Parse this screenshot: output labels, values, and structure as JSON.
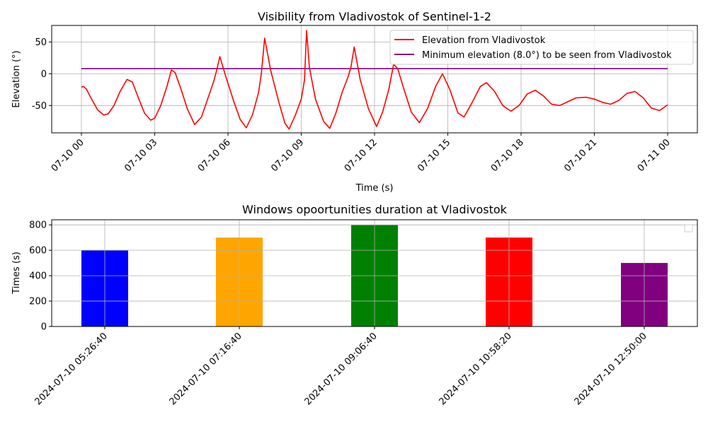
{
  "chart_data": [
    {
      "type": "line",
      "title": "Visibility from Vladivostok of Sentinel-1-2",
      "xlabel": "Time (s)",
      "ylabel": "Elevation (°)",
      "xlim": [
        "2024-07-10 00:00",
        "2024-07-11 00:00"
      ],
      "ylim": [
        -93,
        76
      ],
      "xticks": [
        "07-10 00",
        "07-10 03",
        "07-10 06",
        "07-10 09",
        "07-10 12",
        "07-10 15",
        "07-10 18",
        "07-10 21",
        "07-11 00"
      ],
      "yticks": [
        50,
        0,
        -50
      ],
      "grid": true,
      "legend_position": "top-right",
      "series": [
        {
          "name": "Elevation from Vladivostok",
          "color": "#ff0000",
          "x": [
            "2024-07-10 00:00",
            "2024-07-10 00:05",
            "2024-07-10 00:12",
            "2024-07-10 00:25",
            "2024-07-10 00:40",
            "2024-07-10 00:55",
            "2024-07-10 01:06",
            "2024-07-10 01:20",
            "2024-07-10 01:35",
            "2024-07-10 01:52",
            "2024-07-10 02:05",
            "2024-07-10 02:20",
            "2024-07-10 02:35",
            "2024-07-10 02:50",
            "2024-07-10 03:00",
            "2024-07-10 03:15",
            "2024-07-10 03:30",
            "2024-07-10 03:41",
            "2024-07-10 03:50",
            "2024-07-10 04:05",
            "2024-07-10 04:20",
            "2024-07-10 04:38",
            "2024-07-10 04:55",
            "2024-07-10 05:10",
            "2024-07-10 05:25",
            "2024-07-10 05:32",
            "2024-07-10 05:40",
            "2024-07-10 05:55",
            "2024-07-10 06:15",
            "2024-07-10 06:30",
            "2024-07-10 06:45",
            "2024-07-10 07:00",
            "2024-07-10 07:15",
            "2024-07-10 07:22",
            "2024-07-10 07:30",
            "2024-07-10 07:45",
            "2024-07-10 08:05",
            "2024-07-10 08:20",
            "2024-07-10 08:30",
            "2024-07-10 08:45",
            "2024-07-10 09:00",
            "2024-07-10 09:08",
            "2024-07-10 09:13",
            "2024-07-10 09:20",
            "2024-07-10 09:35",
            "2024-07-10 09:55",
            "2024-07-10 10:10",
            "2024-07-10 10:25",
            "2024-07-10 10:40",
            "2024-07-10 10:55",
            "2024-07-10 11:02",
            "2024-07-10 11:10",
            "2024-07-10 11:25",
            "2024-07-10 11:45",
            "2024-07-10 12:05",
            "2024-07-10 12:20",
            "2024-07-10 12:35",
            "2024-07-10 12:47",
            "2024-07-10 12:57",
            "2024-07-10 13:10",
            "2024-07-10 13:30",
            "2024-07-10 13:50",
            "2024-07-10 14:10",
            "2024-07-10 14:30",
            "2024-07-10 14:47",
            "2024-07-10 15:05",
            "2024-07-10 15:25",
            "2024-07-10 15:40",
            "2024-07-10 16:00",
            "2024-07-10 16:20",
            "2024-07-10 16:35",
            "2024-07-10 16:55",
            "2024-07-10 17:15",
            "2024-07-10 17:35",
            "2024-07-10 17:55",
            "2024-07-10 18:15",
            "2024-07-10 18:35",
            "2024-07-10 18:55",
            "2024-07-10 19:15",
            "2024-07-10 19:35",
            "2024-07-10 19:55",
            "2024-07-10 20:15",
            "2024-07-10 20:40",
            "2024-07-10 21:00",
            "2024-07-10 21:20",
            "2024-07-10 21:40",
            "2024-07-10 22:00",
            "2024-07-10 22:20",
            "2024-07-10 22:40",
            "2024-07-10 23:00",
            "2024-07-10 23:20",
            "2024-07-10 23:40",
            "2024-07-11 00:00"
          ],
          "values": [
            -21,
            -20,
            -24,
            -40,
            -57,
            -65,
            -63,
            -50,
            -28,
            -9,
            -13,
            -38,
            -62,
            -73,
            -70,
            -50,
            -20,
            6,
            2,
            -25,
            -55,
            -80,
            -68,
            -40,
            -12,
            5,
            27,
            -5,
            -45,
            -72,
            -85,
            -65,
            -30,
            0,
            56,
            5,
            -45,
            -78,
            -87,
            -66,
            -40,
            -10,
            68,
            10,
            -40,
            -75,
            -86,
            -62,
            -30,
            -5,
            10,
            42,
            -10,
            -55,
            -83,
            -60,
            -25,
            15,
            8,
            -20,
            -60,
            -77,
            -55,
            -20,
            0,
            -25,
            -62,
            -68,
            -45,
            -20,
            -14,
            -28,
            -50,
            -59,
            -50,
            -32,
            -26,
            -35,
            -48,
            -50,
            -44,
            -38,
            -37,
            -40,
            -45,
            -48,
            -42,
            -31,
            -28,
            -38,
            -54,
            -58,
            -49
          ]
        },
        {
          "name": "Minimum elevation (8.0°) to be seen from Vladivostok",
          "color": "#800080",
          "x": [
            "2024-07-10 00:00",
            "2024-07-11 00:00"
          ],
          "values": [
            8,
            8
          ]
        }
      ]
    },
    {
      "type": "bar",
      "title": "Windows opoortunities duration at Vladivostok",
      "xlabel": "",
      "ylabel": "Times (s)",
      "ylim": [
        0,
        840
      ],
      "yticks": [
        0,
        200,
        400,
        600,
        800
      ],
      "grid": true,
      "categories": [
        "2024-07-10 05:26:40",
        "2024-07-10 07:16:40",
        "2024-07-10 09:06:40",
        "2024-07-10 10:58:20",
        "2024-07-10 12:50:00"
      ],
      "values": [
        600,
        700,
        800,
        700,
        500
      ],
      "colors": [
        "#0000ff",
        "#ffa500",
        "#008000",
        "#ff0000",
        "#800080"
      ],
      "legend_position": "top-right",
      "legend_entries": []
    }
  ]
}
